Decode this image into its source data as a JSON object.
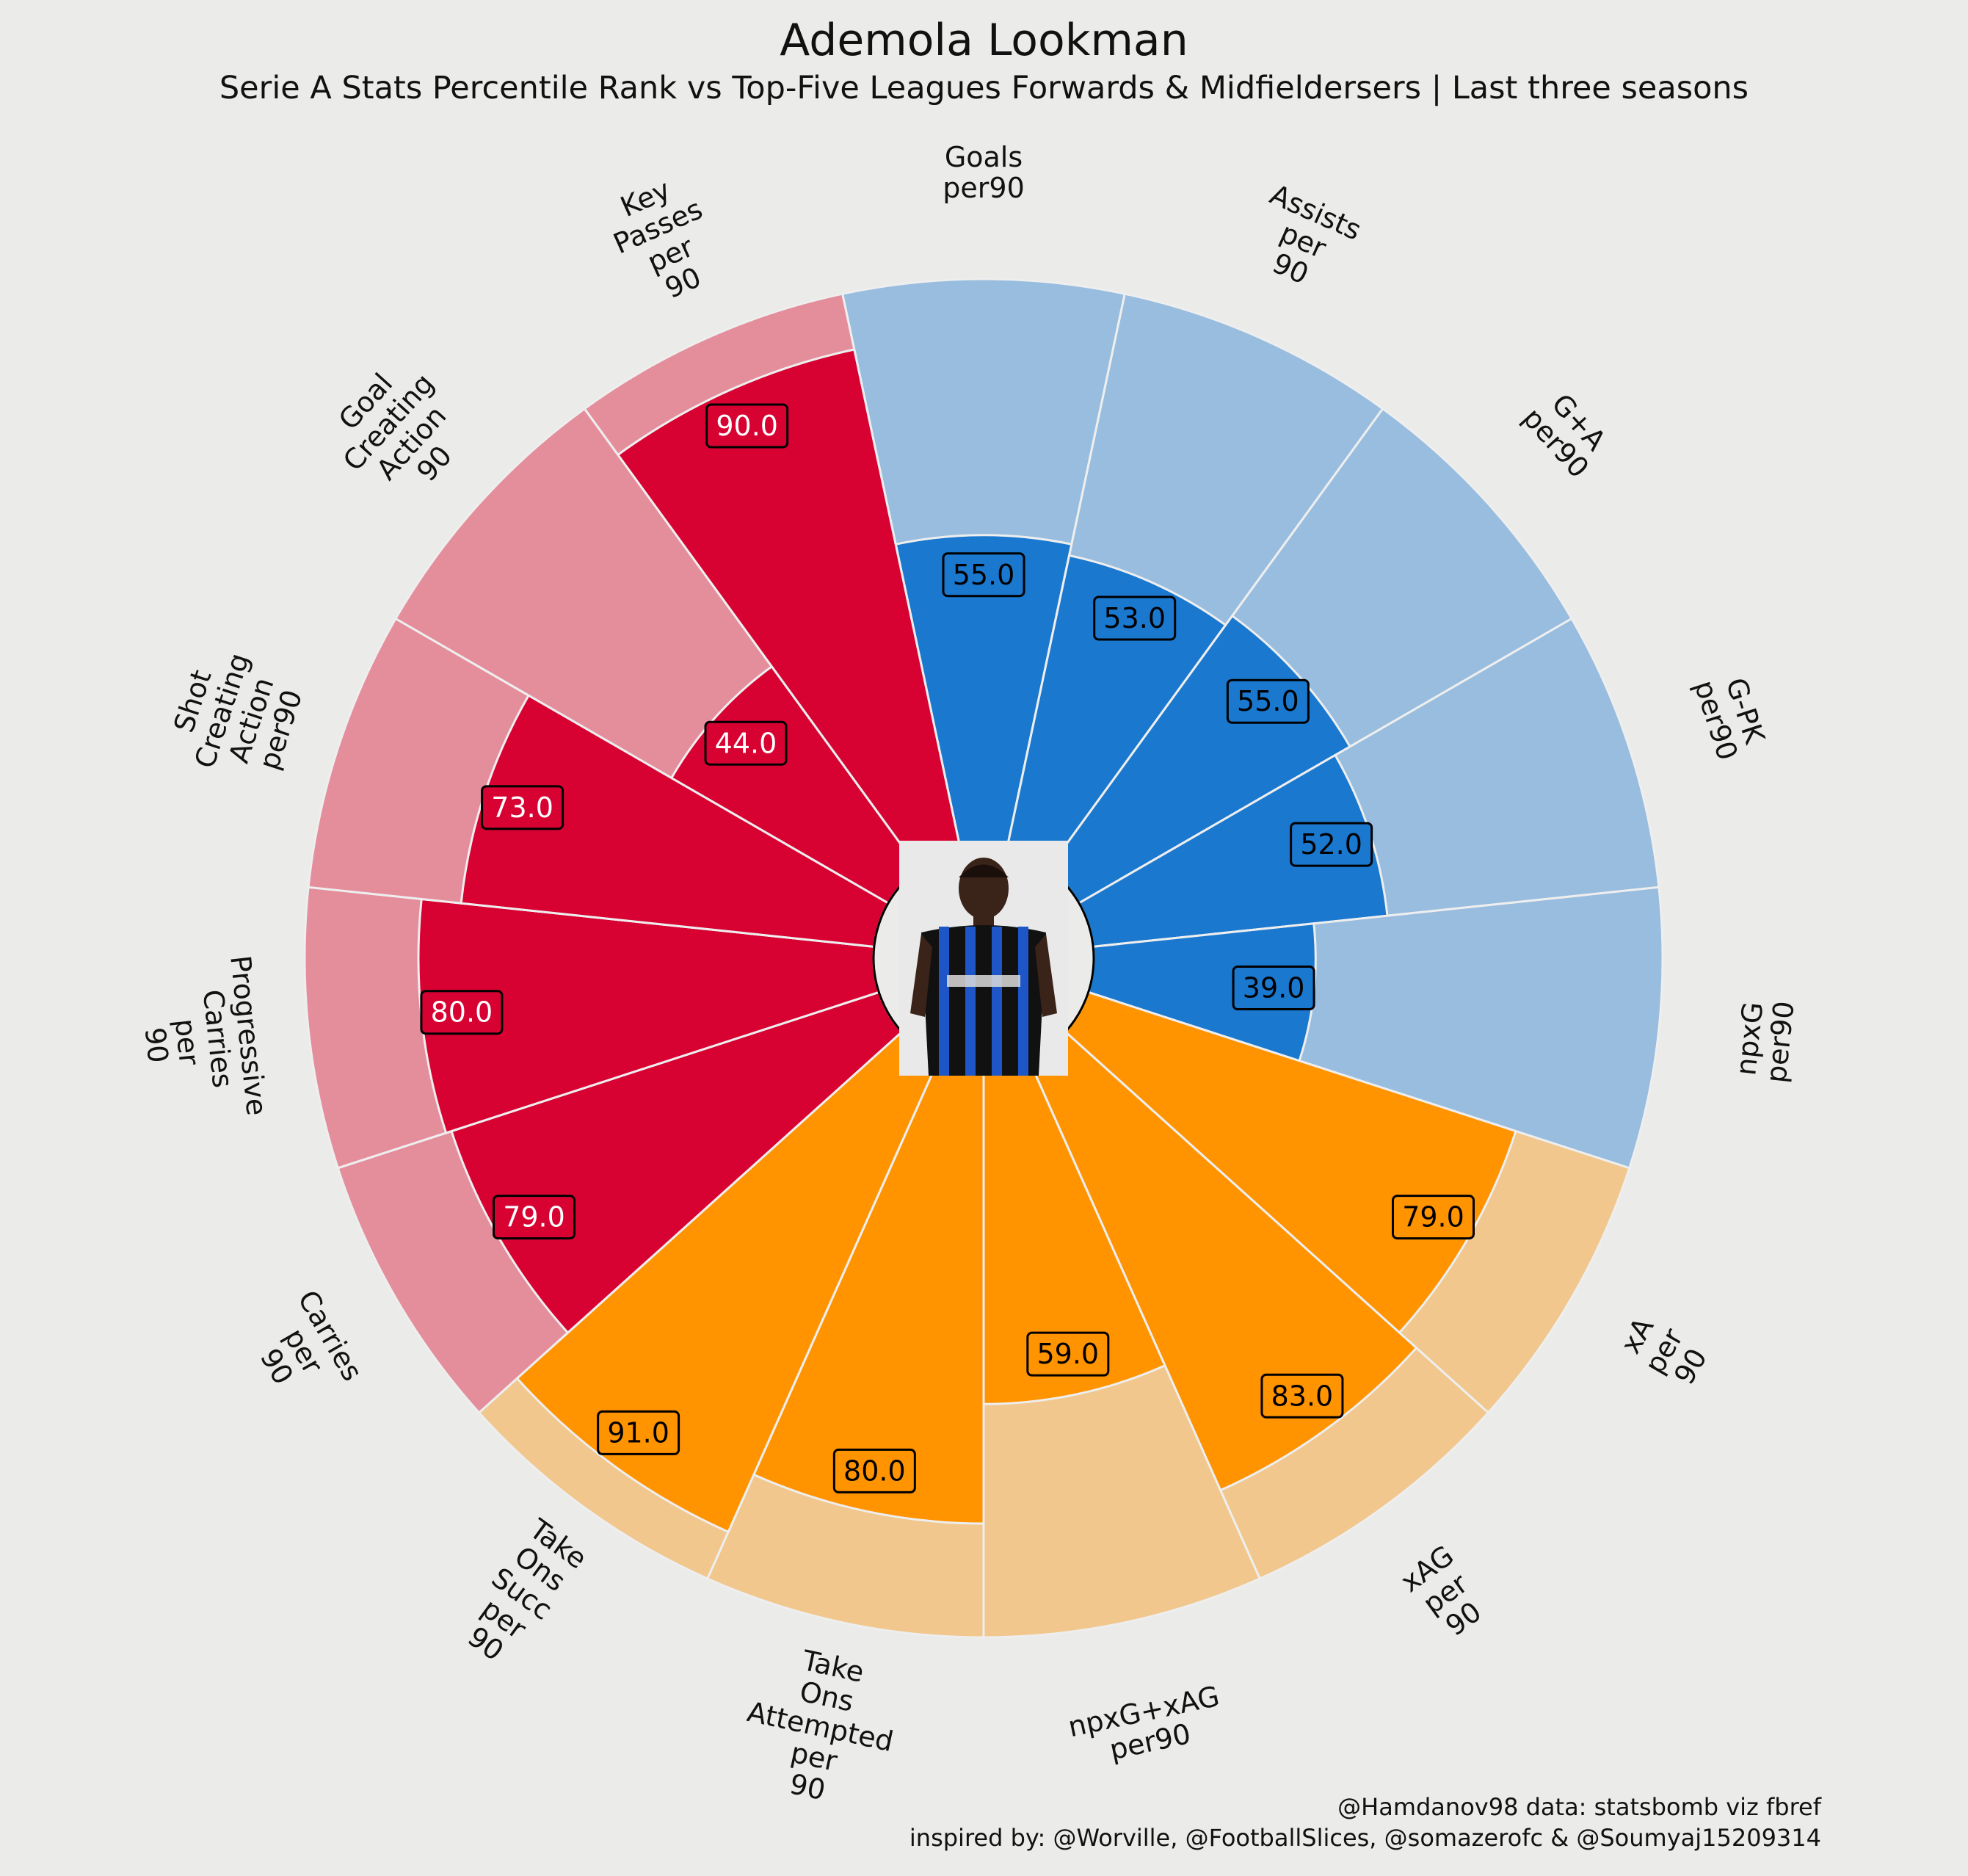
{
  "header": {
    "title": "Ademola Lookman",
    "subtitle": "Serie A Stats Percentile Rank vs Top-Five Leagues Forwards & Midfieldersers | Last three seasons"
  },
  "credits": {
    "line1": "@Hamdanov98 data: statsbomb viz fbref",
    "line2": "inspired by: @Worville, @FootballSlices, @somazerofc & @Soumyaj15209314"
  },
  "colors": {
    "background": "#ebebe9",
    "attacking": "#1a78cf",
    "attacking_light": "#98bddf",
    "possession": "#ff9300",
    "possession_light": "#f1c78d",
    "creation": "#d70232",
    "creation_light": "#e48e9c",
    "separator": "#eeeeee"
  },
  "chart_data": {
    "type": "radial-bar (pizza)",
    "scale": [
      0,
      100
    ],
    "center_image": "player-photo",
    "slices": [
      {
        "label": "Goals\nper90",
        "value": 55.0,
        "group": "attacking"
      },
      {
        "label": "Assists\nper\n90",
        "value": 53.0,
        "group": "attacking"
      },
      {
        "label": "G+A\nper90",
        "value": 55.0,
        "group": "attacking"
      },
      {
        "label": "G-PK\nper90",
        "value": 52.0,
        "group": "attacking"
      },
      {
        "label": "npxG\nper90",
        "value": 39.0,
        "group": "attacking"
      },
      {
        "label": "xA\nper\n90",
        "value": 79.0,
        "group": "possession"
      },
      {
        "label": "xAG\nper\n90",
        "value": 83.0,
        "group": "possession"
      },
      {
        "label": "npxG+xAG\nper90",
        "value": 59.0,
        "group": "possession"
      },
      {
        "label": "Take\nOns\nAttempted\nper\n90",
        "value": 80.0,
        "group": "possession"
      },
      {
        "label": "Take\nOns\nSucc\nper\n90",
        "value": 91.0,
        "group": "possession"
      },
      {
        "label": "Carries\nper\n90",
        "value": 79.0,
        "group": "creation"
      },
      {
        "label": "Progressive\nCarries\nper\n90",
        "value": 80.0,
        "group": "creation"
      },
      {
        "label": "Shot\nCreating\nAction\nper90",
        "value": 73.0,
        "group": "creation"
      },
      {
        "label": "Goal\nCreating\nAction\n90",
        "value": 44.0,
        "group": "creation"
      },
      {
        "label": "Key\nPasses\nper\n90",
        "value": 90.0,
        "group": "creation"
      }
    ]
  }
}
